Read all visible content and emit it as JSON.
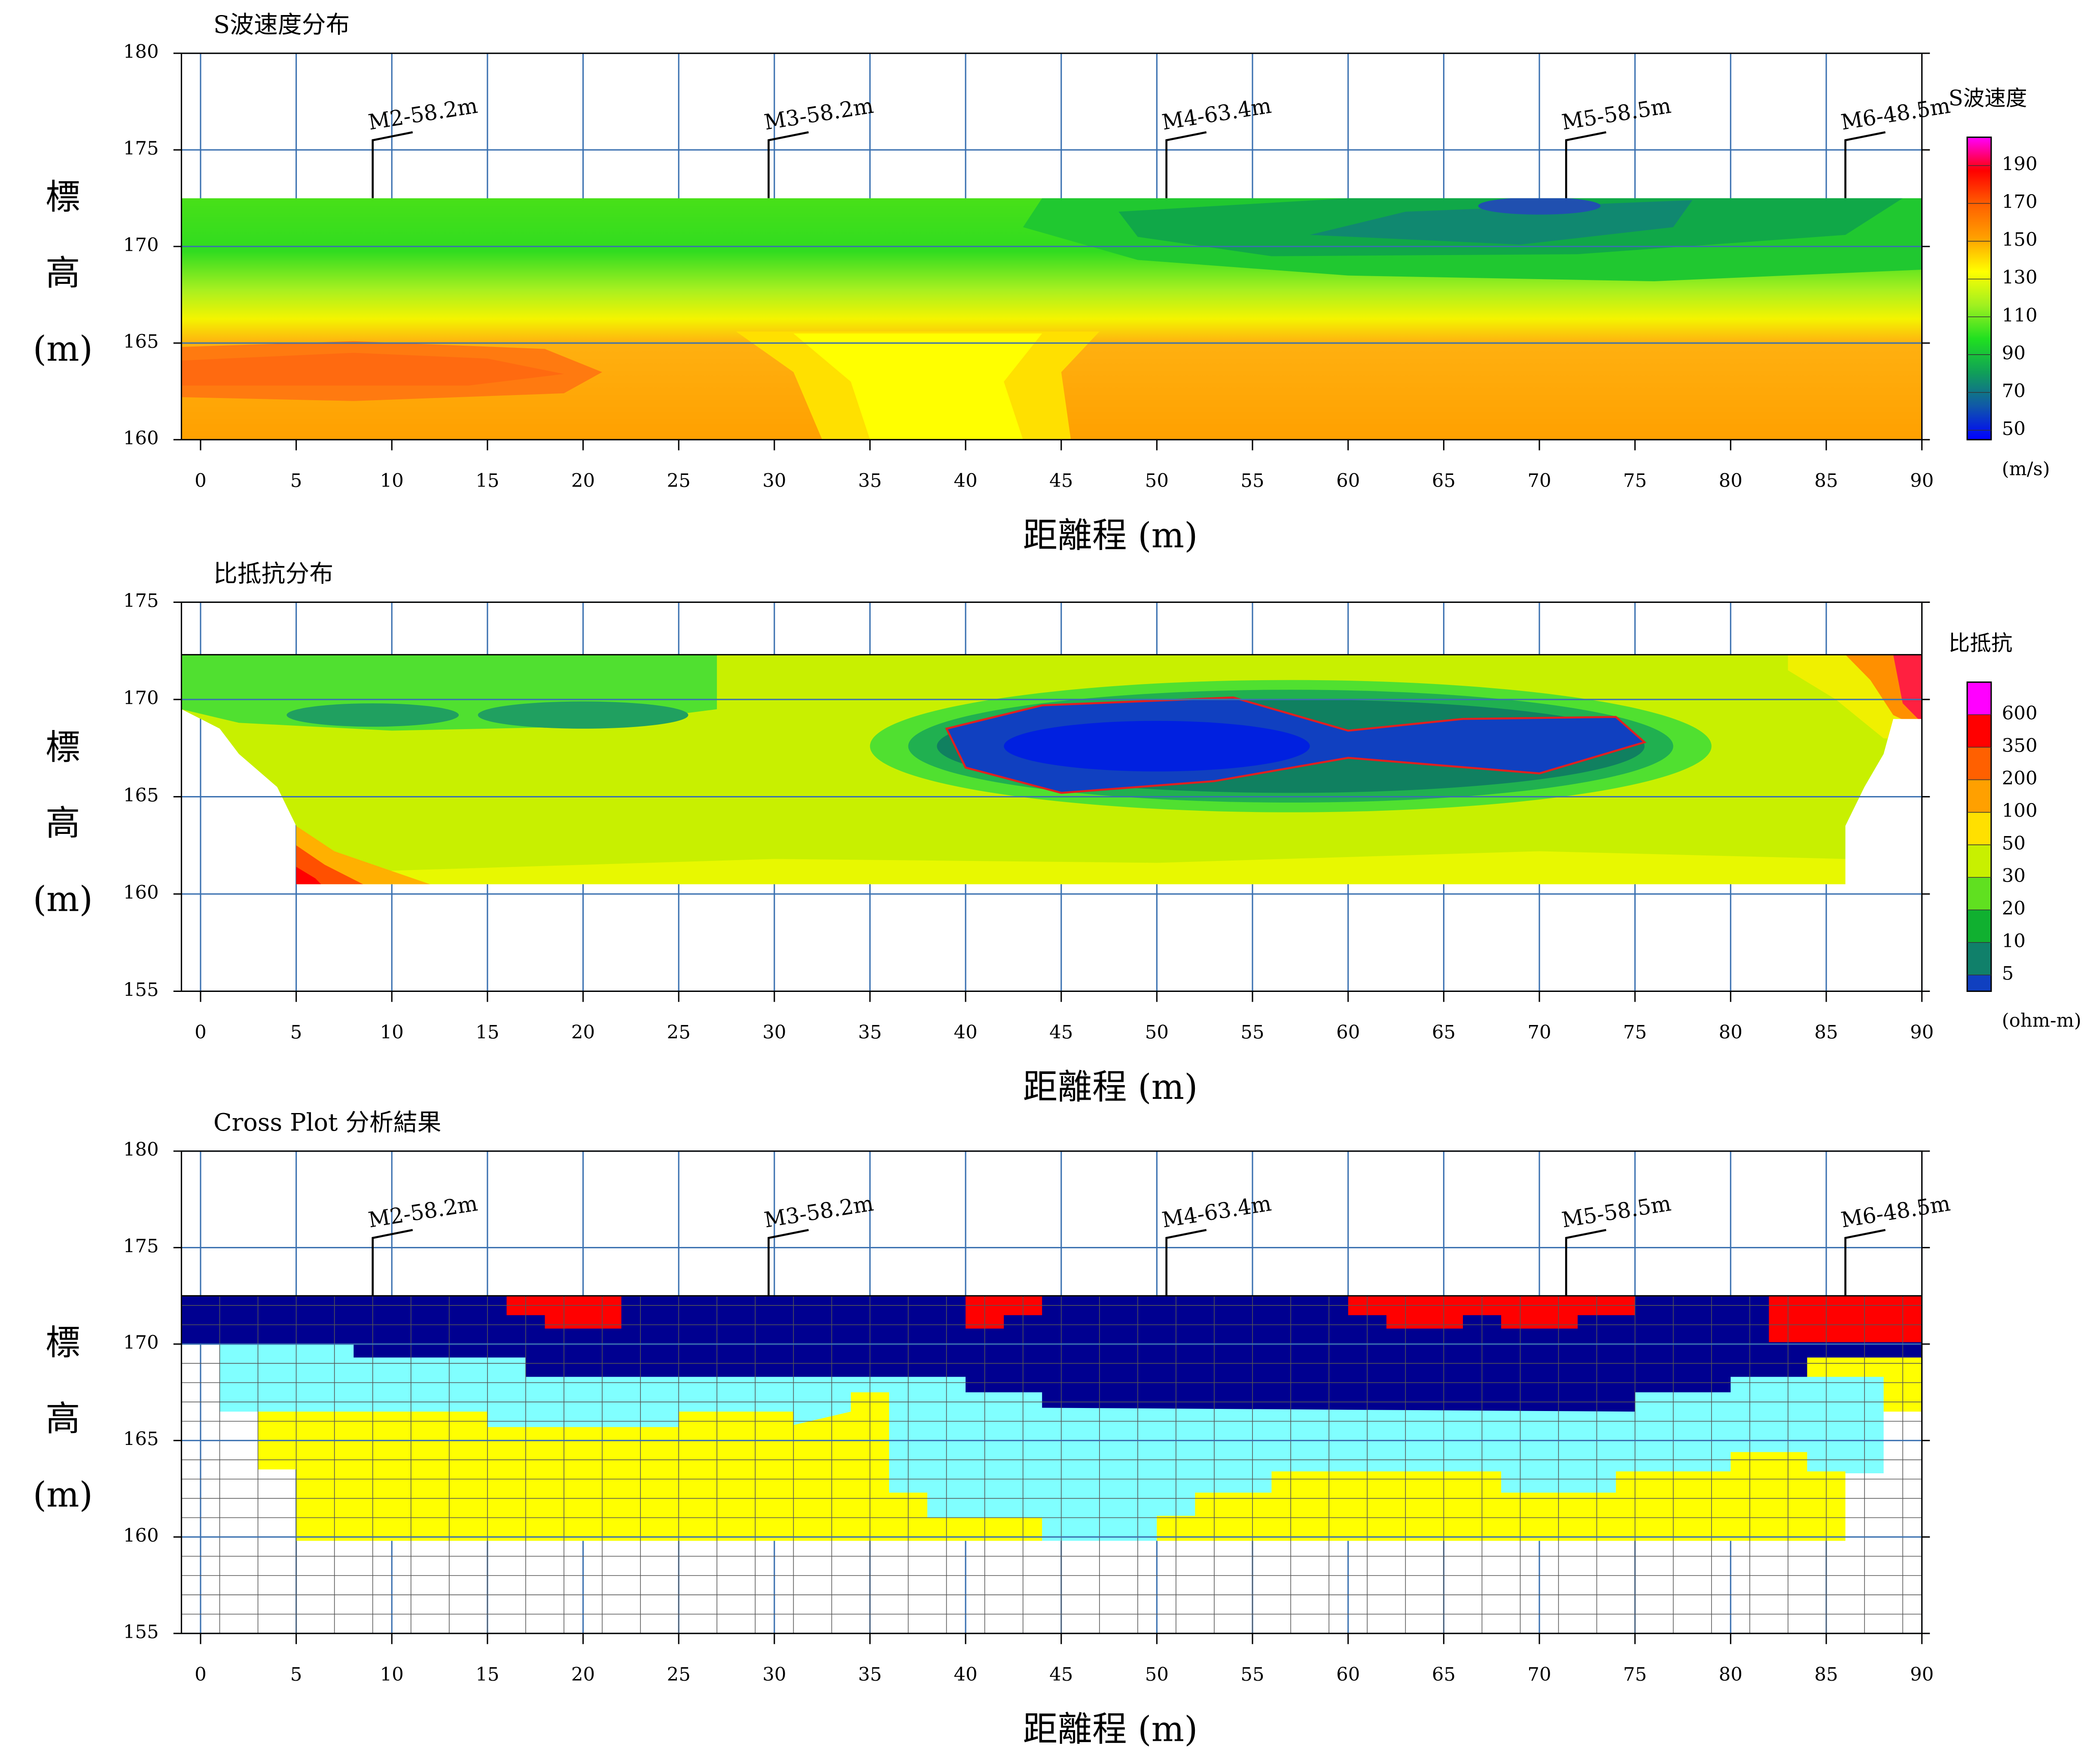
{
  "chart_data": [
    {
      "type": "contour",
      "title": "S波速度分布",
      "xlabel": "距離程 (m)",
      "ylabel": [
        "標",
        "高",
        "(m)"
      ],
      "xlim": [
        -1,
        90
      ],
      "ylim": [
        160,
        180
      ],
      "xticks": [
        0,
        5,
        10,
        15,
        20,
        25,
        30,
        35,
        40,
        45,
        50,
        55,
        60,
        65,
        70,
        75,
        80,
        85,
        90
      ],
      "yticks": [
        160,
        165,
        170,
        175,
        180
      ],
      "grid": true,
      "boreholes": [
        {
          "label": "M2-58.2m",
          "x": 9
        },
        {
          "label": "M3-58.2m",
          "x": 29.7
        },
        {
          "label": "M4-63.4m",
          "x": 50.5
        },
        {
          "label": "M5-58.5m",
          "x": 71.4
        },
        {
          "label": "M6-48.5m",
          "x": 86
        }
      ],
      "colorbar": {
        "title": "S波速度",
        "unit": "(m/s)",
        "scale": "linear",
        "lim": [
          45,
          205
        ],
        "ticks": [
          50,
          70,
          90,
          110,
          130,
          150,
          170,
          190
        ],
        "colors": [
          "#0000ff",
          "#1058a8",
          "#10a058",
          "#20e020",
          "#a0f020",
          "#ffff00",
          "#ffa000",
          "#ff6000",
          "#ff0000",
          "#ff00ff"
        ]
      }
    },
    {
      "type": "contour",
      "title": "比抵抗分布",
      "xlabel": "距離程 (m)",
      "ylabel": [
        "標",
        "高",
        "(m)"
      ],
      "xlim": [
        -1,
        90
      ],
      "ylim": [
        155,
        175
      ],
      "xticks": [
        0,
        5,
        10,
        15,
        20,
        25,
        30,
        35,
        40,
        45,
        50,
        55,
        60,
        65,
        70,
        75,
        80,
        85,
        90
      ],
      "yticks": [
        155,
        160,
        165,
        170,
        175
      ],
      "grid": true,
      "colorbar": {
        "title": "比抵抗",
        "unit": "(ohm-m)",
        "scale": "levels",
        "ticks": [
          600,
          350,
          200,
          100,
          50,
          30,
          20,
          10,
          5
        ],
        "colors": [
          "#ff00ff",
          "#ff0000",
          "#ff6000",
          "#ffa000",
          "#ffe000",
          "#c8f000",
          "#60e020",
          "#10b030",
          "#10806a",
          "#1040c0",
          "#0000ff"
        ]
      }
    },
    {
      "type": "grid",
      "title": "Cross Plot 分析結果",
      "xlabel": "距離程 (m)",
      "ylabel": [
        "標",
        "高",
        "(m)"
      ],
      "xlim": [
        -1,
        90
      ],
      "ylim": [
        155,
        180
      ],
      "xticks": [
        0,
        5,
        10,
        15,
        20,
        25,
        30,
        35,
        40,
        45,
        50,
        55,
        60,
        65,
        70,
        75,
        80,
        85,
        90
      ],
      "yticks": [
        155,
        160,
        165,
        170,
        175,
        180
      ],
      "grid": true,
      "boreholes": [
        {
          "label": "M2-58.2m",
          "x": 9
        },
        {
          "label": "M3-58.2m",
          "x": 29.7
        },
        {
          "label": "M4-63.4m",
          "x": 50.5
        },
        {
          "label": "M5-58.5m",
          "x": 71.4
        },
        {
          "label": "M6-48.5m",
          "x": 86
        }
      ]
    }
  ]
}
